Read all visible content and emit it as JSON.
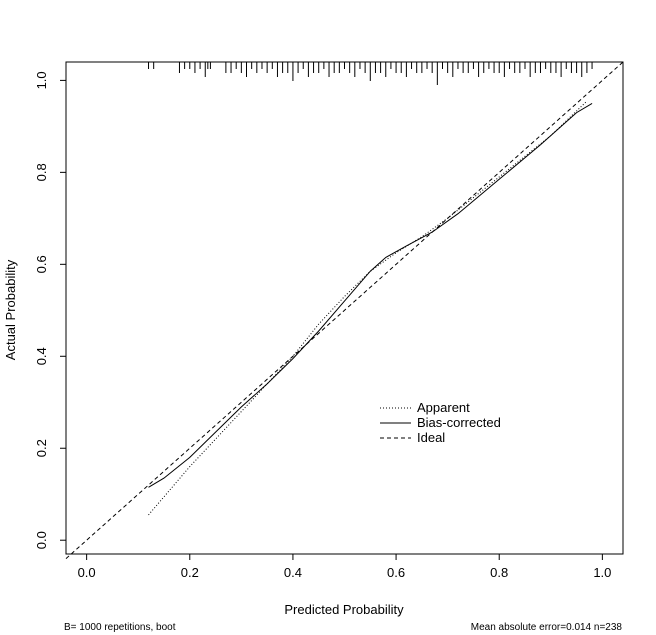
{
  "chart_data": {
    "type": "line",
    "xlabel": "Predicted Probability",
    "ylabel": "Actual Probability",
    "xlim": [
      -0.04,
      1.04
    ],
    "ylim": [
      -0.03,
      1.04
    ],
    "x_ticks": [
      0.0,
      0.2,
      0.4,
      0.6,
      0.8,
      1.0
    ],
    "y_ticks": [
      0.0,
      0.2,
      0.4,
      0.6,
      0.8,
      1.0
    ],
    "x_tick_labels": [
      "0.0",
      "0.2",
      "0.4",
      "0.6",
      "0.8",
      "1.0"
    ],
    "y_tick_labels": [
      "0.0",
      "0.2",
      "0.4",
      "0.6",
      "0.8",
      "1.0"
    ],
    "grid": false,
    "legend_position": "lower-right",
    "series": [
      {
        "name": "Apparent",
        "style": "dotted",
        "x": [
          0.12,
          0.2,
          0.3,
          0.4,
          0.45,
          0.5,
          0.55,
          0.6,
          0.65,
          0.7,
          0.8,
          0.9,
          0.97
        ],
        "y": [
          0.055,
          0.16,
          0.28,
          0.4,
          0.47,
          0.53,
          0.585,
          0.625,
          0.66,
          0.7,
          0.79,
          0.88,
          0.955
        ]
      },
      {
        "name": "Bias-corrected",
        "style": "solid",
        "x": [
          0.12,
          0.15,
          0.2,
          0.25,
          0.3,
          0.35,
          0.4,
          0.45,
          0.5,
          0.55,
          0.58,
          0.62,
          0.67,
          0.72,
          0.8,
          0.88,
          0.95,
          0.98
        ],
        "y": [
          0.115,
          0.135,
          0.18,
          0.235,
          0.29,
          0.34,
          0.395,
          0.455,
          0.52,
          0.585,
          0.615,
          0.64,
          0.67,
          0.71,
          0.785,
          0.86,
          0.93,
          0.95
        ]
      },
      {
        "name": "Ideal",
        "style": "dashed",
        "x": [
          -0.04,
          1.04
        ],
        "y": [
          -0.04,
          1.04
        ]
      }
    ],
    "rug_marks": [
      0.12,
      0.13,
      0.18,
      0.19,
      0.2,
      0.21,
      0.22,
      0.23,
      0.235,
      0.24,
      0.27,
      0.28,
      0.29,
      0.3,
      0.31,
      0.32,
      0.33,
      0.34,
      0.35,
      0.36,
      0.37,
      0.38,
      0.39,
      0.4,
      0.41,
      0.42,
      0.43,
      0.44,
      0.45,
      0.46,
      0.47,
      0.48,
      0.49,
      0.5,
      0.51,
      0.52,
      0.53,
      0.54,
      0.55,
      0.56,
      0.57,
      0.58,
      0.59,
      0.6,
      0.61,
      0.62,
      0.63,
      0.64,
      0.65,
      0.66,
      0.67,
      0.68,
      0.69,
      0.7,
      0.71,
      0.72,
      0.73,
      0.74,
      0.75,
      0.76,
      0.77,
      0.78,
      0.79,
      0.8,
      0.81,
      0.82,
      0.83,
      0.84,
      0.85,
      0.86,
      0.87,
      0.88,
      0.89,
      0.9,
      0.91,
      0.92,
      0.93,
      0.94,
      0.95,
      0.96,
      0.97,
      0.98
    ],
    "rug_counts": [
      1,
      1,
      2,
      1,
      1,
      2,
      1,
      3,
      1,
      1,
      2,
      2,
      1,
      2,
      3,
      1,
      2,
      1,
      2,
      1,
      3,
      2,
      2,
      4,
      2,
      1,
      3,
      2,
      2,
      1,
      3,
      2,
      2,
      1,
      2,
      3,
      1,
      2,
      4,
      2,
      2,
      3,
      1,
      2,
      2,
      3,
      1,
      2,
      2,
      1,
      2,
      5,
      1,
      2,
      3,
      1,
      2,
      2,
      1,
      3,
      2,
      1,
      2,
      2,
      3,
      1,
      2,
      2,
      1,
      3,
      2,
      2,
      1,
      2,
      2,
      3,
      1,
      2,
      2,
      3,
      2,
      1
    ],
    "footer_left": "B= 1000 repetitions, boot",
    "footer_right": "Mean absolute error=0.014 n=238"
  }
}
